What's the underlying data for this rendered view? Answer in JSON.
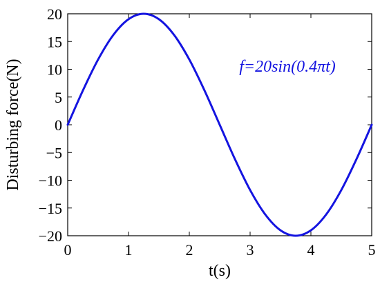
{
  "chart_data": {
    "type": "line",
    "title": "",
    "xlabel": "t(s)",
    "ylabel": "Disturbing force(N)",
    "xlim": [
      0,
      5
    ],
    "ylim": [
      -20,
      20
    ],
    "x_ticks": [
      0,
      1,
      2,
      3,
      4,
      5
    ],
    "y_ticks": [
      -20,
      -15,
      -10,
      -5,
      0,
      5,
      10,
      15,
      20
    ],
    "grid": false,
    "series": [
      {
        "color": "#1414e0",
        "x": [
          0,
          0.25,
          0.5,
          0.75,
          1.0,
          1.25,
          1.5,
          1.75,
          2.0,
          2.25,
          2.5,
          2.75,
          3.0,
          3.25,
          3.5,
          3.75,
          4.0,
          4.25,
          4.5,
          4.75,
          5.0
        ],
        "y": [
          0,
          6.18,
          11.76,
          16.18,
          19.02,
          20,
          19.02,
          16.18,
          11.76,
          6.18,
          0,
          -6.18,
          -11.76,
          -16.18,
          -19.02,
          -20,
          -19.02,
          -16.18,
          -11.76,
          -6.18,
          0
        ]
      }
    ],
    "annotation": {
      "text": "f=20sin(0.4πt)",
      "color": "#1414e0"
    }
  }
}
